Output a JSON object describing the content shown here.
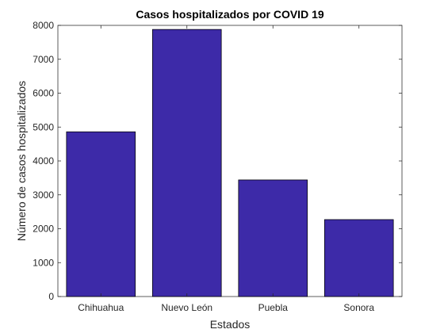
{
  "chart_data": {
    "type": "bar",
    "title": "Casos hospitalizados por COVID 19",
    "xlabel": "Estados",
    "ylabel": "Número de casos hospitalizados",
    "categories": [
      "Chihuahua",
      "Nuevo León",
      "Puebla",
      "Sonora"
    ],
    "values": [
      4860,
      7880,
      3440,
      2270
    ],
    "ylim": [
      0,
      8000
    ],
    "yticks": [
      0,
      1000,
      2000,
      3000,
      4000,
      5000,
      6000,
      7000,
      8000
    ],
    "grid": false,
    "legend": "none",
    "colors": {
      "bar_fill": "#3d2aa8",
      "bar_edge": "#000000",
      "axis": "#262626",
      "background": "#ffffff"
    }
  }
}
